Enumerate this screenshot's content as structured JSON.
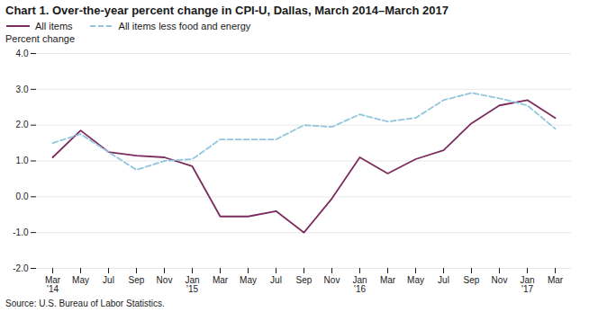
{
  "chart_data": {
    "type": "line",
    "title": "Chart 1. Over-the-year percent change in CPI-U, Dallas, March 2014–March 2017",
    "ylabel": "Percent change",
    "source": "Source: U.S. Bureau of Labor Statistics.",
    "categories": [
      "Mar\n'14",
      "May",
      "Jul",
      "Sep",
      "Nov",
      "Jan\n'15",
      "Mar",
      "May",
      "Jul",
      "Sep",
      "Nov",
      "Jan\n'16",
      "Mar",
      "May",
      "Jul",
      "Sep",
      "Nov",
      "Jan\n'17",
      "Mar"
    ],
    "series": [
      {
        "name": "All items",
        "color": "#7b2d5e",
        "line_style": "solid",
        "values": [
          1.1,
          1.85,
          1.25,
          1.15,
          1.1,
          0.85,
          -0.55,
          -0.55,
          -0.4,
          -1.0,
          -0.05,
          1.1,
          0.65,
          1.05,
          1.3,
          2.05,
          2.55,
          2.7,
          2.2
        ]
      },
      {
        "name": "All items less food and energy",
        "color": "#92c5de",
        "line_style": "dashed",
        "values": [
          1.5,
          1.75,
          1.25,
          0.75,
          1.0,
          1.05,
          1.6,
          1.6,
          1.6,
          2.0,
          1.95,
          2.3,
          2.1,
          2.2,
          2.7,
          2.9,
          2.75,
          2.55,
          1.9
        ]
      }
    ],
    "ylim": [
      -2.0,
      4.0
    ],
    "yticks": [
      {
        "value": -2.0,
        "label": "-2.0"
      },
      {
        "value": -1.0,
        "label": "-1.0"
      },
      {
        "value": 0.0,
        "label": "0.0"
      },
      {
        "value": 1.0,
        "label": "1.0"
      },
      {
        "value": 2.0,
        "label": "2.0"
      },
      {
        "value": 3.0,
        "label": "3.0"
      },
      {
        "value": 4.0,
        "label": "4.0"
      }
    ],
    "grid": true,
    "legend": "upper left"
  }
}
